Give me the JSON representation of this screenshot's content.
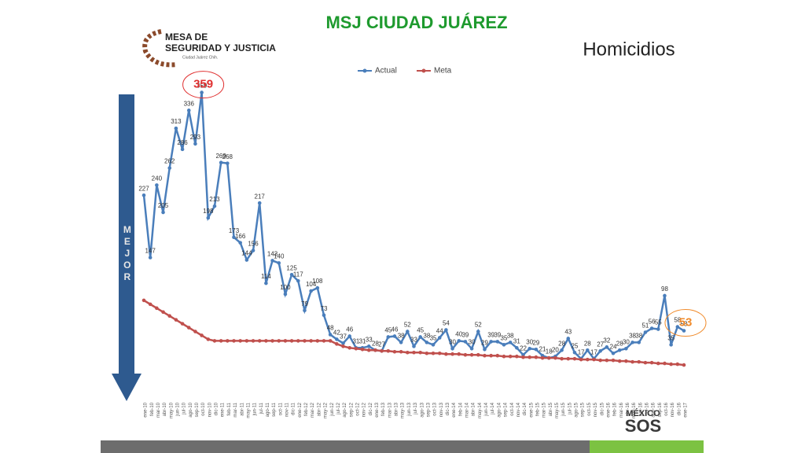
{
  "header": {
    "title": "MSJ CIUDAD JUÁREZ",
    "subtitle": "Homicidios",
    "logo_line1": "MESA DE",
    "logo_line2": "SEGURIDAD Y JUSTICIA",
    "logo_line3": "Ciudad Juárez Chih.",
    "side_label": "MEJOR",
    "brand_top": "MÉXICO",
    "brand_bottom": "SOS"
  },
  "chart_data": {
    "type": "line",
    "categories": [
      "ene-10",
      "feb-10",
      "mar-10",
      "abr-10",
      "may-10",
      "jun-10",
      "jul-10",
      "ago-10",
      "sep-10",
      "oct-10",
      "nov-10",
      "dic-10",
      "ene-11",
      "feb-11",
      "mar-11",
      "abr-11",
      "may-11",
      "jun-11",
      "jul-11",
      "ago-11",
      "sep-11",
      "oct-11",
      "nov-11",
      "dic-11",
      "ene-12",
      "feb-12",
      "mar-12",
      "abr-12",
      "may-12",
      "jun-12",
      "jul-12",
      "ago-12",
      "sep-12",
      "oct-12",
      "nov-12",
      "dic-12",
      "ene-13",
      "feb-13",
      "mar-13",
      "abr-13",
      "may-13",
      "jun-13",
      "jul-13",
      "ago-13",
      "sep-13",
      "oct-13",
      "nov-13",
      "dic-13",
      "ene-14",
      "feb-14",
      "mar-14",
      "abr-14",
      "may-14",
      "jun-14",
      "jul-14",
      "ago-14",
      "sep-14",
      "oct-14",
      "nov-14",
      "dic-14",
      "ene-15",
      "feb-15",
      "mar-15",
      "abr-15",
      "may-15",
      "jun-15",
      "jul-15",
      "ago-15",
      "sep-15",
      "oct-15",
      "nov-15",
      "dic-15",
      "ene-16",
      "feb-16",
      "mar-16",
      "abr-16",
      "may-16",
      "jun-16",
      "jul-16",
      "ago-16",
      "sep-16",
      "oct-16",
      "nov-16",
      "dic-16",
      "ene-17"
    ],
    "series": [
      {
        "name": "Actual",
        "color": "#4a7ebb",
        "values": [
          227,
          147,
          240,
          205,
          262,
          313,
          286,
          336,
          293,
          359,
          198,
          213,
          269,
          268,
          173,
          166,
          144,
          156,
          217,
          114,
          143,
          140,
          100,
          125,
          117,
          79,
          104,
          108,
          73,
          48,
          42,
          37,
          46,
          31,
          31,
          33,
          28,
          27,
          45,
          46,
          38,
          52,
          33,
          45,
          38,
          35,
          44,
          54,
          30,
          40,
          39,
          30,
          52,
          29,
          39,
          39,
          35,
          38,
          31,
          22,
          30,
          29,
          21,
          18,
          20,
          28,
          43,
          25,
          17,
          28,
          17,
          27,
          32,
          24,
          28,
          30,
          38,
          38,
          51,
          56,
          55,
          98,
          35,
          58,
          53
        ]
      },
      {
        "name": "Meta",
        "color": "#c0504d",
        "values": [
          92,
          87,
          82,
          77,
          72,
          67,
          62,
          57,
          52,
          47,
          42,
          40,
          40,
          40,
          40,
          40,
          40,
          40,
          40,
          40,
          40,
          40,
          40,
          40,
          40,
          40,
          40,
          40,
          40,
          40,
          36,
          33,
          31,
          30,
          29,
          28,
          28,
          27,
          27,
          26,
          26,
          25,
          25,
          25,
          24,
          24,
          24,
          23,
          23,
          23,
          22,
          22,
          22,
          21,
          21,
          21,
          20,
          20,
          20,
          19,
          19,
          19,
          18,
          18,
          18,
          17,
          17,
          17,
          16,
          16,
          16,
          15,
          15,
          15,
          14,
          14,
          13,
          13,
          12,
          12,
          11,
          11,
          10,
          10,
          9
        ]
      }
    ]
  }
}
